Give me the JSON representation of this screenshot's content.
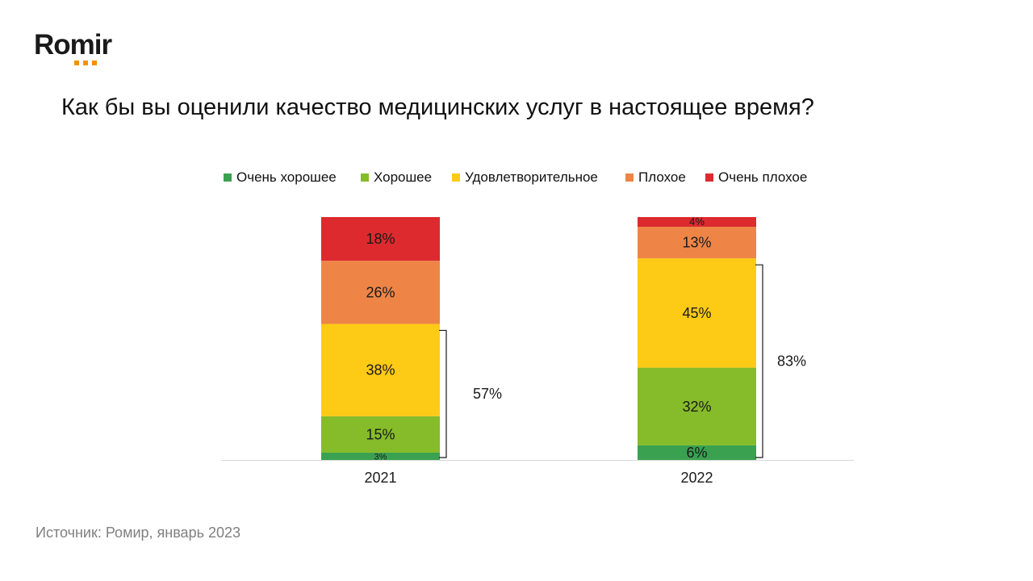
{
  "brand": {
    "name": "Romir",
    "accent": "#f39200"
  },
  "title": "Как бы вы оценили качество медицинских услуг в настоящее время?",
  "source": "Источник: Ромир, январь 2023",
  "chart_data": {
    "type": "bar",
    "stacked": true,
    "categories": [
      "2021",
      "2022"
    ],
    "ylim": [
      0,
      100
    ],
    "grid": false,
    "legend_position": "top",
    "series": [
      {
        "name": "Очень хорошее",
        "values": [
          3,
          6
        ],
        "labels": [
          "3%",
          "6%"
        ],
        "color": "#3aa150"
      },
      {
        "name": "Хорошее",
        "values": [
          15,
          32
        ],
        "labels": [
          "15%",
          "32%"
        ],
        "color": "#86bb2a"
      },
      {
        "name": "Удовлетворительное",
        "values": [
          38,
          45
        ],
        "labels": [
          "38%",
          "45%"
        ],
        "color": "#fdca16"
      },
      {
        "name": "Плохое",
        "values": [
          26,
          13
        ],
        "labels": [
          "26%",
          "13%"
        ],
        "color": "#ee8546"
      },
      {
        "name": "Очень плохое",
        "values": [
          18,
          4
        ],
        "labels": [
          "18%",
          "4%"
        ],
        "color": "#dc2a2f"
      }
    ],
    "annotations": [
      {
        "category": "2021",
        "label": "57%",
        "spans_series": [
          "Очень хорошее",
          "Хорошее",
          "Удовлетворительное"
        ]
      },
      {
        "category": "2022",
        "label": "83%",
        "spans_series": [
          "Очень хорошее",
          "Хорошее",
          "Удовлетворительное"
        ]
      }
    ]
  }
}
